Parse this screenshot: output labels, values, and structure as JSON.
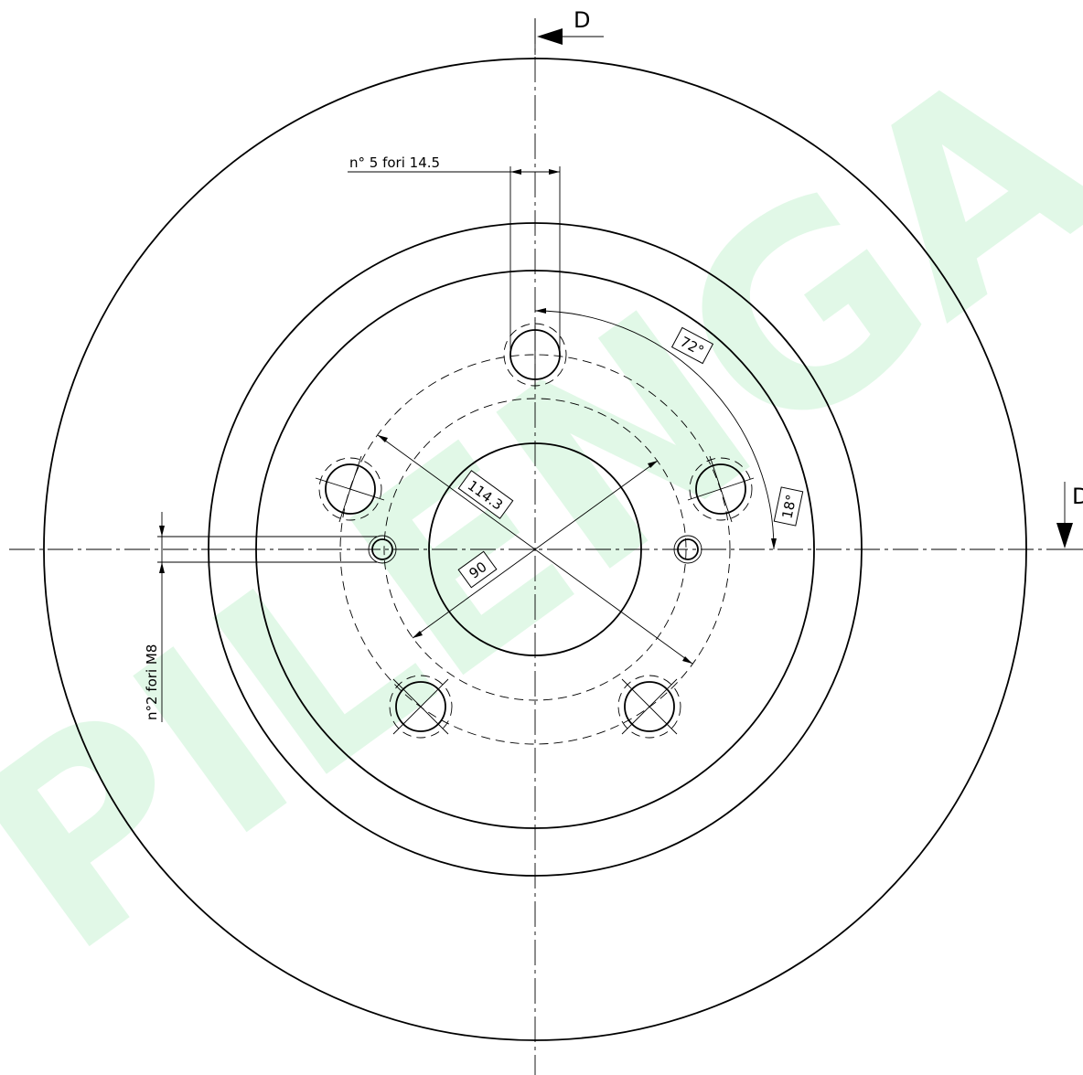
{
  "watermark": {
    "text": "PILENGA",
    "color": "#2ecc55"
  },
  "section_marks": [
    "D",
    "D"
  ],
  "labels": {
    "bolt_holes": "n° 5  fori 14.5",
    "threaded_holes": "n°2  fori M8",
    "angle_72": "72°",
    "angle_18": "18°",
    "pcd": "114.3",
    "hub_diameter": "90"
  }
}
